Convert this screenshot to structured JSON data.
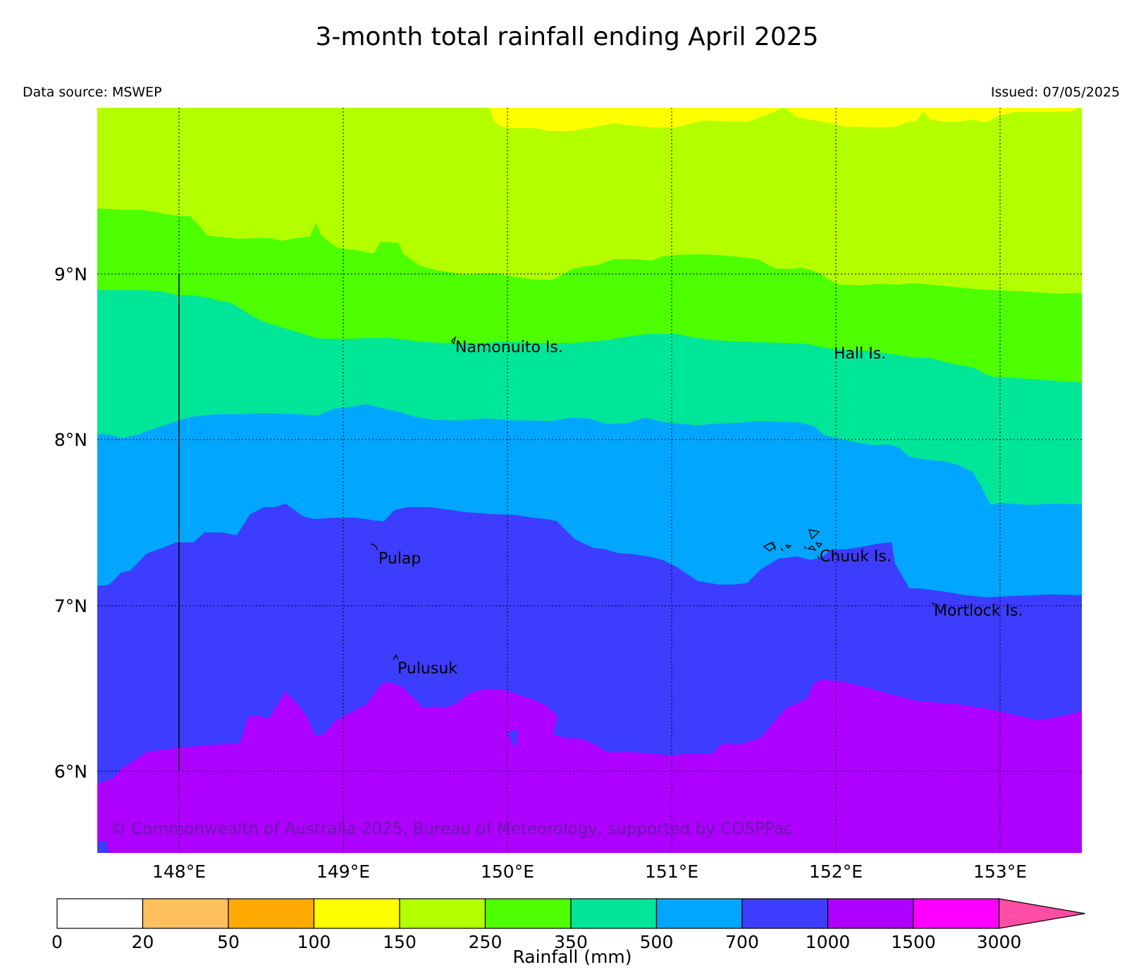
{
  "title": "3-month total rainfall ending April 2025",
  "data_source": "Data source: MSWEP",
  "issued": "Issued: 07/05/2025",
  "copyright": "© Commonwealth of Australia 2025, Bureau of Meteorology, supported by COSPPac",
  "map": {
    "lon_ticks": [
      "148°E",
      "149°E",
      "150°E",
      "151°E",
      "152°E",
      "153°E"
    ],
    "lat_ticks": [
      "9°N",
      "8°N",
      "7°N",
      "6°N"
    ],
    "places": [
      "Namonuito Is.",
      "Hall Is.",
      "Pulap",
      "Chuuk Is.",
      "Mortlock Is.",
      "Pulusuk"
    ]
  },
  "legend": {
    "label": "Rainfall (mm)",
    "ticks": [
      "0",
      "20",
      "50",
      "100",
      "150",
      "250",
      "350",
      "500",
      "700",
      "1000",
      "1500",
      "3000"
    ],
    "colors": [
      "#ffffff",
      "#ffbf5e",
      "#ffaa00",
      "#ffff00",
      "#b3ff00",
      "#4dff00",
      "#00e699",
      "#00a6ff",
      "#3d3dff",
      "#ae00ff",
      "#ff00ff",
      "#ff4da6"
    ]
  }
}
